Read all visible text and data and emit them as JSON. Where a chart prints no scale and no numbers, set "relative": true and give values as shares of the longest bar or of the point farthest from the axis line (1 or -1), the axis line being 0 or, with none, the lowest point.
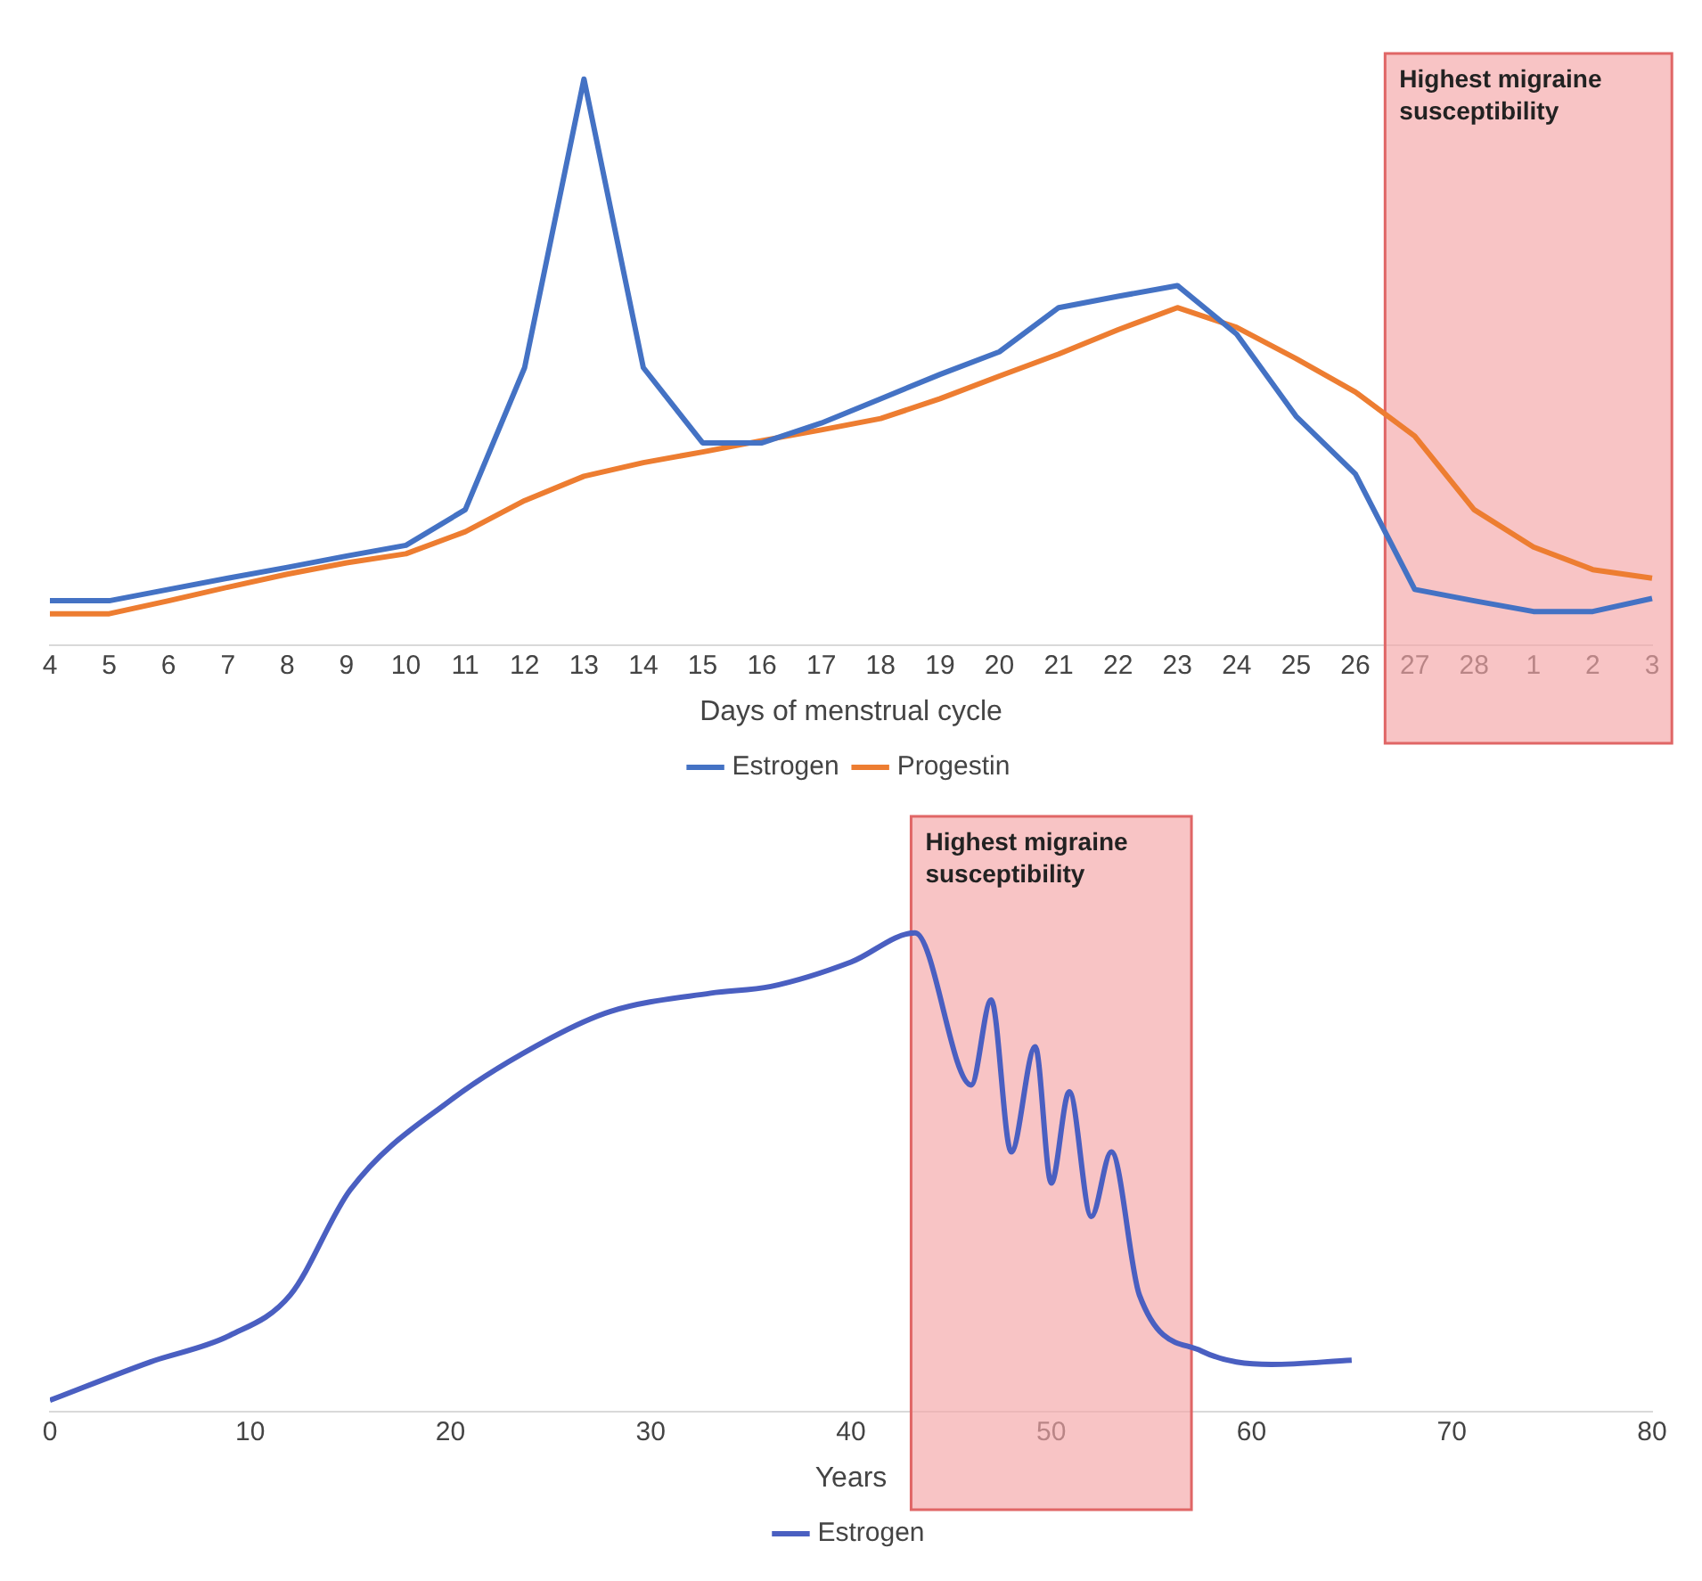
{
  "chart_data": [
    {
      "type": "line",
      "xlabel": "Days of menstrual cycle",
      "relative": true,
      "legend": "bottom",
      "grid": false,
      "marker": "none",
      "categories": [
        "4",
        "5",
        "6",
        "7",
        "8",
        "9",
        "10",
        "11",
        "12",
        "13",
        "14",
        "15",
        "16",
        "17",
        "18",
        "19",
        "20",
        "21",
        "22",
        "23",
        "24",
        "25",
        "26",
        "27",
        "28",
        "1",
        "2",
        "3"
      ],
      "series": [
        {
          "name": "Estrogen",
          "color": "#4472c4",
          "values": [
            0.078,
            0.078,
            0.098,
            0.118,
            0.137,
            0.157,
            0.176,
            0.239,
            0.49,
            1,
            0.49,
            0.357,
            0.357,
            0.392,
            0.435,
            0.478,
            0.518,
            0.596,
            0.616,
            0.635,
            0.549,
            0.404,
            0.302,
            0.098,
            0.078,
            0.059,
            0.059,
            0.082
          ]
        },
        {
          "name": "Progestin",
          "color": "#ed7d31",
          "values": [
            0.055,
            0.055,
            0.078,
            0.102,
            0.125,
            0.145,
            0.161,
            0.2,
            0.255,
            0.298,
            0.322,
            0.341,
            0.361,
            0.38,
            0.4,
            0.435,
            0.475,
            0.514,
            0.557,
            0.596,
            0.561,
            0.506,
            0.447,
            0.369,
            0.239,
            0.173,
            0.133,
            0.118
          ]
        }
      ],
      "bands": [
        {
          "axis": "x",
          "from": "27",
          "to": "3",
          "label": "Highest migraine susceptibility",
          "color": "#f4a6a8"
        }
      ]
    },
    {
      "type": "line",
      "xlabel": "Years",
      "relative": true,
      "legend": "bottom",
      "grid": false,
      "marker": "none",
      "xlim": [
        0,
        80
      ],
      "xticks": [
        0,
        10,
        20,
        30,
        40,
        50,
        60,
        70,
        80
      ],
      "x": [
        0,
        5,
        9,
        12,
        15,
        20,
        25,
        28,
        33,
        36,
        40,
        43.2,
        46,
        47,
        48,
        49.2,
        50,
        50.9,
        52,
        53,
        54.4,
        57.5,
        61,
        65
      ],
      "series": [
        {
          "name": "Estrogen",
          "color": "#4a5fc1",
          "values": [
            0.023,
            0.103,
            0.159,
            0.243,
            0.463,
            0.65,
            0.78,
            0.836,
            0.874,
            0.888,
            0.939,
            1,
            0.682,
            0.86,
            0.542,
            0.762,
            0.477,
            0.668,
            0.407,
            0.542,
            0.243,
            0.126,
            0.098,
            0.107
          ]
        }
      ],
      "bands": [
        {
          "axis": "x",
          "from": 43,
          "to": 57,
          "label": "Highest migraine susceptibility",
          "color": "#f4a6a8"
        }
      ]
    }
  ]
}
